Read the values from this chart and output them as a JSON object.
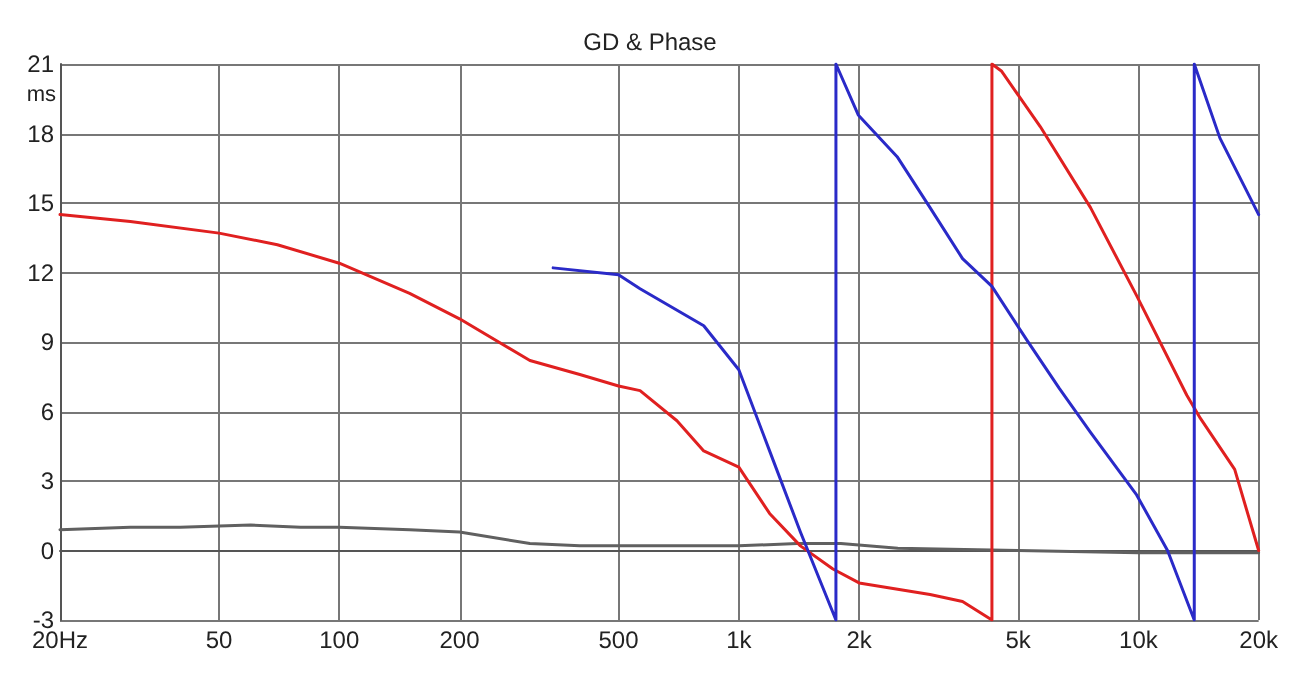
{
  "chart_data": {
    "type": "line",
    "title": "GD & Phase",
    "ylabel": "ms",
    "log": "x",
    "grid": true,
    "marker": "none",
    "line_style": "solid",
    "xlim": [
      20,
      20000
    ],
    "ylim": [
      -3,
      21
    ],
    "xticks": [
      {
        "value": 20,
        "label": "20Hz"
      },
      50,
      100,
      200,
      500,
      {
        "value": 1000,
        "label": "1k"
      },
      {
        "value": 2000,
        "label": "2k"
      },
      {
        "value": 5000,
        "label": "5k"
      },
      {
        "value": 10000,
        "label": "10k"
      },
      {
        "value": 20000,
        "label": "20k"
      }
    ],
    "yticks": [
      -3,
      0,
      3,
      6,
      9,
      12,
      15,
      18,
      21
    ],
    "series": [
      {
        "color": "#606060",
        "x": [
          20,
          30,
          40,
          60,
          80,
          100,
          150,
          200,
          300,
          400,
          500,
          700,
          1000,
          1400,
          1800,
          2500,
          5000,
          10000,
          20000
        ],
        "values": [
          0.9,
          1.0,
          1.0,
          1.1,
          1.0,
          1.0,
          0.9,
          0.8,
          0.3,
          0.2,
          0.2,
          0.2,
          0.2,
          0.3,
          0.3,
          0.1,
          0.0,
          -0.1,
          -0.1
        ]
      },
      {
        "color": "#e02020",
        "x": [
          20,
          30,
          50,
          70,
          100,
          150,
          200,
          300,
          400,
          500,
          566,
          700,
          817,
          1000,
          1194,
          1426,
          1720,
          2000,
          3010,
          3630,
          4300,
          4300,
          4540,
          5680,
          7590,
          9900,
          13220,
          14300,
          17420,
          20000
        ],
        "values": [
          14.5,
          14.2,
          13.7,
          13.2,
          12.4,
          11.1,
          10.0,
          8.2,
          7.6,
          7.1,
          6.9,
          5.6,
          4.3,
          3.6,
          1.6,
          0.2,
          -0.8,
          -1.4,
          -1.9,
          -2.2,
          -3,
          21,
          20.7,
          18.3,
          14.8,
          11.0,
          6.7,
          5.7,
          3.5,
          0
        ]
      },
      {
        "color": "#2a2ac8",
        "x": [
          343,
          500,
          566,
          817,
          1000,
          1194,
          1426,
          1750,
          1750,
          1990,
          2490,
          3010,
          3630,
          4300,
          5250,
          6340,
          7590,
          9900,
          11830,
          13800,
          13800,
          16000,
          20000
        ],
        "values": [
          12.2,
          11.9,
          11.3,
          9.7,
          7.8,
          4.3,
          0.8,
          -3,
          21,
          18.8,
          17,
          14.8,
          12.6,
          11.4,
          9.1,
          7.0,
          5.1,
          2.4,
          0,
          -3,
          21,
          17.8,
          14.5
        ]
      }
    ]
  }
}
